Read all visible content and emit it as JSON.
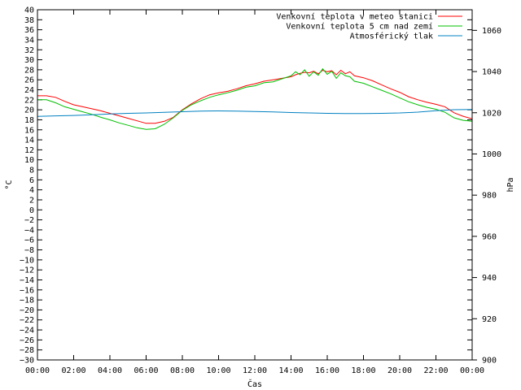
{
  "chart_data": {
    "type": "line",
    "title": "",
    "xlabel": "Čas",
    "ylabel_left": "°C",
    "ylabel_right": "hPa",
    "grid": false,
    "legend_position": "top-right",
    "x_ticks": [
      "00:00",
      "02:00",
      "04:00",
      "06:00",
      "08:00",
      "10:00",
      "12:00",
      "14:00",
      "16:00",
      "18:00",
      "20:00",
      "22:00",
      "00:00"
    ],
    "x_range_hours": [
      0,
      24
    ],
    "y_left": {
      "min": -30,
      "max": 40,
      "step": 2
    },
    "y_right": {
      "min": 900,
      "max": 1070,
      "ticks": [
        900,
        920,
        940,
        960,
        980,
        1000,
        1020,
        1040,
        1060
      ]
    },
    "series": [
      {
        "name": "Venkovní teplota v meteo stanici",
        "axis": "left",
        "color": "#ff0000",
        "x": [
          0,
          0.5,
          1,
          1.5,
          2,
          2.5,
          3,
          3.5,
          4,
          4.5,
          5,
          5.5,
          6,
          6.5,
          7,
          7.5,
          8,
          8.5,
          9,
          9.5,
          10,
          10.5,
          11,
          11.5,
          12,
          12.5,
          13,
          13.5,
          14,
          14.25,
          14.5,
          14.75,
          15,
          15.25,
          15.5,
          15.75,
          16,
          16.25,
          16.5,
          16.75,
          17,
          17.25,
          17.5,
          18,
          18.5,
          19,
          19.5,
          20,
          20.5,
          21,
          21.5,
          22,
          22.5,
          23,
          23.5,
          24
        ],
        "values": [
          22.8,
          22.8,
          22.5,
          21.7,
          21.0,
          20.6,
          20.2,
          19.8,
          19.3,
          18.8,
          18.3,
          17.8,
          17.3,
          17.3,
          17.7,
          18.5,
          20.0,
          21.2,
          22.2,
          23.0,
          23.4,
          23.7,
          24.2,
          24.8,
          25.2,
          25.7,
          26.0,
          26.3,
          26.6,
          27.0,
          27.3,
          27.5,
          27.4,
          27.7,
          27.2,
          27.9,
          27.6,
          27.8,
          27.0,
          27.9,
          27.2,
          27.6,
          26.8,
          26.4,
          25.8,
          25.0,
          24.2,
          23.5,
          22.6,
          22.0,
          21.5,
          21.1,
          20.6,
          19.4,
          18.7,
          18.2
        ]
      },
      {
        "name": "Venkovní teplota 5 cm nad zemí",
        "axis": "left",
        "color": "#00c000",
        "x": [
          0,
          0.5,
          1,
          1.5,
          2,
          2.5,
          3,
          3.5,
          4,
          4.5,
          5,
          5.5,
          6,
          6.5,
          7,
          7.5,
          8,
          8.5,
          9,
          9.5,
          10,
          10.5,
          11,
          11.5,
          12,
          12.5,
          13,
          13.5,
          14,
          14.25,
          14.5,
          14.75,
          15,
          15.25,
          15.5,
          15.75,
          16,
          16.25,
          16.5,
          16.75,
          17,
          17.25,
          17.5,
          18,
          18.5,
          19,
          19.5,
          20,
          20.5,
          21,
          21.5,
          22,
          22.5,
          23,
          23.5,
          24
        ],
        "values": [
          22.0,
          22.0,
          21.4,
          20.6,
          20.1,
          19.6,
          19.1,
          18.5,
          18.0,
          17.4,
          16.9,
          16.4,
          16.1,
          16.2,
          17.1,
          18.4,
          19.9,
          21.0,
          21.8,
          22.5,
          23.0,
          23.4,
          23.9,
          24.5,
          24.8,
          25.4,
          25.6,
          26.2,
          26.8,
          27.6,
          27.0,
          28.0,
          26.7,
          27.6,
          26.9,
          28.2,
          27.1,
          27.7,
          26.3,
          27.4,
          26.8,
          26.6,
          25.7,
          25.3,
          24.6,
          23.9,
          23.2,
          22.4,
          21.6,
          21.0,
          20.5,
          20.1,
          19.5,
          18.4,
          17.9,
          17.7
        ]
      },
      {
        "name": "Atmosférický tlak",
        "axis": "right",
        "color": "#0080c0",
        "x": [
          0,
          1,
          2,
          3,
          4,
          5,
          6,
          7,
          8,
          9,
          10,
          11,
          12,
          13,
          14,
          15,
          16,
          17,
          18,
          19,
          20,
          21,
          22,
          23,
          24
        ],
        "values": [
          1018.2,
          1018.5,
          1018.7,
          1019.0,
          1019.4,
          1019.7,
          1019.9,
          1020.2,
          1020.5,
          1020.8,
          1020.9,
          1020.8,
          1020.6,
          1020.4,
          1020.1,
          1019.9,
          1019.7,
          1019.6,
          1019.6,
          1019.7,
          1019.9,
          1020.3,
          1021.0,
          1021.5,
          1021.6
        ]
      }
    ]
  }
}
